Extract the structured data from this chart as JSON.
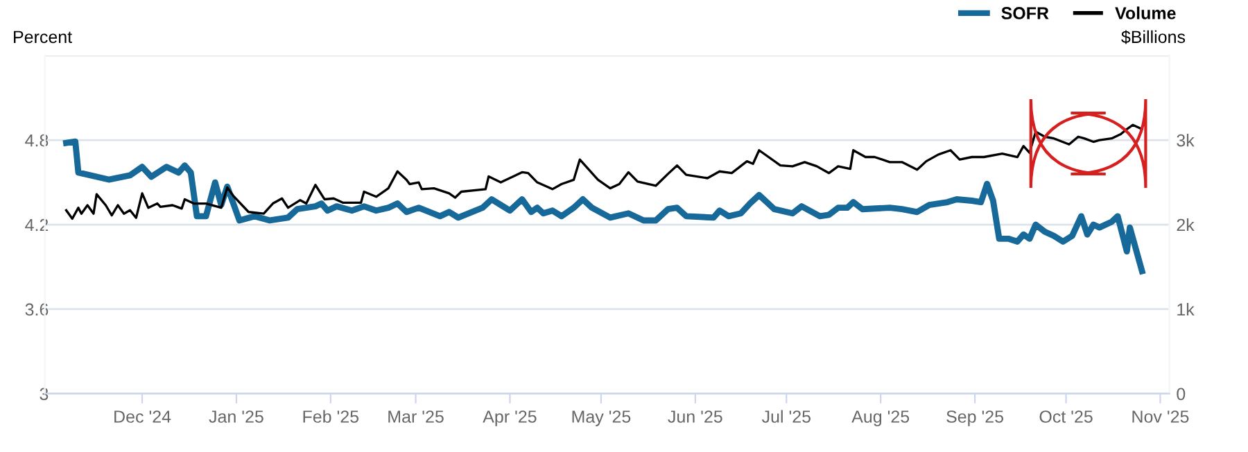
{
  "chart_data": {
    "type": "line",
    "ylabel": "Percent",
    "y2label": "$Billions",
    "xlim": [
      "2024-10-30",
      "2025-11-04"
    ],
    "xticks": [
      {
        "value": "2024-12-01",
        "label": "Dec '24"
      },
      {
        "value": "2025-01-01",
        "label": "Jan '25"
      },
      {
        "value": "2025-02-01",
        "label": "Feb '25"
      },
      {
        "value": "2025-03-01",
        "label": "Mar '25"
      },
      {
        "value": "2025-04-01",
        "label": "Apr '25"
      },
      {
        "value": "2025-05-01",
        "label": "May '25"
      },
      {
        "value": "2025-06-01",
        "label": "Jun '25"
      },
      {
        "value": "2025-07-01",
        "label": "Jul '25"
      },
      {
        "value": "2025-08-01",
        "label": "Aug '25"
      },
      {
        "value": "2025-09-01",
        "label": "Sep '25"
      },
      {
        "value": "2025-10-01",
        "label": "Oct '25"
      },
      {
        "value": "2025-11-01",
        "label": "Nov '25"
      }
    ],
    "ylim": [
      3,
      5.4
    ],
    "yticks": [
      3,
      3.6,
      4.2,
      4.8,
      {
        "value": 5.4,
        "label": null
      }
    ],
    "y2lim": [
      0,
      4000
    ],
    "y2ticks": [
      0,
      {
        "value": 1000,
        "label": "1k"
      },
      {
        "value": 2000,
        "label": "2k"
      },
      {
        "value": 3000,
        "label": "3k"
      },
      {
        "value": 4000,
        "label": null
      }
    ],
    "grid": "y",
    "legend": "top right",
    "line_style": "solid",
    "marker": "none",
    "series": [
      {
        "name": "SOFR",
        "color": "#17699a",
        "x": [
          "2024-11-06",
          "2024-11-09",
          "2024-11-10",
          "2024-11-20",
          "2024-11-27",
          "2024-12-01",
          "2024-12-04",
          "2024-12-09",
          "2024-12-13",
          "2024-12-15",
          "2024-12-17",
          "2024-12-19",
          "2024-12-22",
          "2024-12-25",
          "2024-12-27",
          "2024-12-29",
          "2025-01-02",
          "2025-01-07",
          "2025-01-12",
          "2025-01-18",
          "2025-01-21",
          "2025-01-27",
          "2025-01-29",
          "2025-01-31",
          "2025-02-03",
          "2025-02-08",
          "2025-02-12",
          "2025-02-16",
          "2025-02-20",
          "2025-02-23",
          "2025-02-26",
          "2025-03-02",
          "2025-03-09",
          "2025-03-12",
          "2025-03-15",
          "2025-03-23",
          "2025-03-26",
          "2025-03-29",
          "2025-04-01",
          "2025-04-05",
          "2025-04-08",
          "2025-04-10",
          "2025-04-12",
          "2025-04-15",
          "2025-04-18",
          "2025-04-22",
          "2025-04-25",
          "2025-04-28",
          "2025-05-04",
          "2025-05-10",
          "2025-05-15",
          "2025-05-19",
          "2025-05-23",
          "2025-05-26",
          "2025-05-29",
          "2025-06-07",
          "2025-06-09",
          "2025-06-12",
          "2025-06-16",
          "2025-06-19",
          "2025-06-22",
          "2025-06-25",
          "2025-06-27",
          "2025-07-03",
          "2025-07-06",
          "2025-07-12",
          "2025-07-15",
          "2025-07-18",
          "2025-07-21",
          "2025-07-23",
          "2025-07-26",
          "2025-08-04",
          "2025-08-08",
          "2025-08-13",
          "2025-08-17",
          "2025-08-23",
          "2025-08-26",
          "2025-08-31",
          "2025-09-03",
          "2025-09-05",
          "2025-09-07",
          "2025-09-09",
          "2025-09-12",
          "2025-09-15",
          "2025-09-17",
          "2025-09-19",
          "2025-09-21",
          "2025-09-24",
          "2025-09-27",
          "2025-09-30",
          "2025-10-03",
          "2025-10-06",
          "2025-10-08",
          "2025-10-10",
          "2025-10-12",
          "2025-10-16",
          "2025-10-18",
          "2025-10-21",
          "2025-10-22",
          "2025-10-26"
        ],
        "values": [
          4.78,
          4.79,
          4.57,
          4.52,
          4.55,
          4.61,
          4.54,
          4.61,
          4.57,
          4.62,
          4.57,
          4.26,
          4.26,
          4.5,
          4.34,
          4.47,
          4.23,
          4.26,
          4.23,
          4.25,
          4.31,
          4.33,
          4.35,
          4.3,
          4.33,
          4.3,
          4.33,
          4.3,
          4.32,
          4.35,
          4.29,
          4.32,
          4.26,
          4.29,
          4.25,
          4.32,
          4.38,
          4.34,
          4.3,
          4.38,
          4.29,
          4.32,
          4.28,
          4.3,
          4.26,
          4.32,
          4.38,
          4.32,
          4.25,
          4.28,
          4.23,
          4.23,
          4.31,
          4.32,
          4.26,
          4.25,
          4.3,
          4.26,
          4.28,
          4.35,
          4.41,
          4.35,
          4.31,
          4.28,
          4.33,
          4.26,
          4.27,
          4.32,
          4.32,
          4.36,
          4.31,
          4.32,
          4.31,
          4.29,
          4.34,
          4.36,
          4.38,
          4.37,
          4.36,
          4.49,
          4.37,
          4.1,
          4.1,
          4.08,
          4.13,
          4.1,
          4.2,
          4.15,
          4.12,
          4.08,
          4.12,
          4.26,
          4.13,
          4.2,
          4.18,
          4.22,
          4.26,
          4.01,
          4.18,
          3.87
        ]
      },
      {
        "name": "Volume",
        "color": "#000000",
        "axis": "y2",
        "x": [
          "2024-11-06",
          "2024-11-08",
          "2024-11-10",
          "2024-11-11",
          "2024-11-13",
          "2024-11-15",
          "2024-11-16",
          "2024-11-19",
          "2024-11-21",
          "2024-11-23",
          "2024-11-25",
          "2024-11-27",
          "2024-11-29",
          "2024-12-01",
          "2024-12-03",
          "2024-12-06",
          "2024-12-07",
          "2024-12-11",
          "2024-12-14",
          "2024-12-15",
          "2024-12-18",
          "2024-12-22",
          "2024-12-27",
          "2024-12-29",
          "2024-12-31",
          "2025-01-05",
          "2025-01-10",
          "2025-01-13",
          "2025-01-16",
          "2025-01-18",
          "2025-01-22",
          "2025-01-24",
          "2025-01-27",
          "2025-01-30",
          "2025-02-02",
          "2025-02-05",
          "2025-02-11",
          "2025-02-12",
          "2025-02-16",
          "2025-02-20",
          "2025-02-23",
          "2025-02-26",
          "2025-02-27",
          "2025-03-02",
          "2025-03-03",
          "2025-03-07",
          "2025-03-12",
          "2025-03-14",
          "2025-03-16",
          "2025-03-24",
          "2025-03-25",
          "2025-03-29",
          "2025-04-05",
          "2025-04-07",
          "2025-04-10",
          "2025-04-15",
          "2025-04-18",
          "2025-04-22",
          "2025-04-24",
          "2025-04-26",
          "2025-04-30",
          "2025-05-04",
          "2025-05-07",
          "2025-05-10",
          "2025-05-13",
          "2025-05-19",
          "2025-05-23",
          "2025-05-26",
          "2025-05-29",
          "2025-06-05",
          "2025-06-09",
          "2025-06-13",
          "2025-06-18",
          "2025-06-20",
          "2025-06-22",
          "2025-06-29",
          "2025-07-03",
          "2025-07-07",
          "2025-07-11",
          "2025-07-15",
          "2025-07-18",
          "2025-07-22",
          "2025-07-23",
          "2025-07-27",
          "2025-07-30",
          "2025-08-04",
          "2025-08-08",
          "2025-08-13",
          "2025-08-16",
          "2025-08-20",
          "2025-08-24",
          "2025-08-27",
          "2025-08-31",
          "2025-09-04",
          "2025-09-10",
          "2025-09-15",
          "2025-09-17",
          "2025-09-19",
          "2025-09-21",
          "2025-09-24",
          "2025-09-27",
          "2025-10-02",
          "2025-10-05",
          "2025-10-07",
          "2025-10-10",
          "2025-10-12",
          "2025-10-16",
          "2025-10-19",
          "2025-10-21",
          "2025-10-23",
          "2025-10-26"
        ],
        "values": [
          2170,
          2070,
          2200,
          2130,
          2230,
          2130,
          2360,
          2230,
          2110,
          2230,
          2130,
          2170,
          2080,
          2370,
          2200,
          2250,
          2210,
          2230,
          2190,
          2300,
          2250,
          2250,
          2200,
          2440,
          2340,
          2150,
          2130,
          2250,
          2310,
          2200,
          2290,
          2250,
          2470,
          2300,
          2310,
          2260,
          2260,
          2390,
          2330,
          2430,
          2630,
          2530,
          2480,
          2500,
          2420,
          2430,
          2370,
          2320,
          2390,
          2420,
          2570,
          2500,
          2620,
          2610,
          2500,
          2420,
          2480,
          2530,
          2770,
          2690,
          2530,
          2430,
          2480,
          2620,
          2510,
          2460,
          2600,
          2700,
          2590,
          2550,
          2630,
          2610,
          2750,
          2720,
          2880,
          2700,
          2690,
          2740,
          2690,
          2610,
          2690,
          2660,
          2880,
          2800,
          2800,
          2740,
          2740,
          2650,
          2750,
          2830,
          2880,
          2770,
          2800,
          2800,
          2840,
          2800,
          2930,
          2850,
          3100,
          3040,
          3020,
          2950,
          3040,
          3020,
          2980,
          3000,
          3020,
          3070,
          3130,
          3180,
          3130
        ]
      }
    ]
  }
}
